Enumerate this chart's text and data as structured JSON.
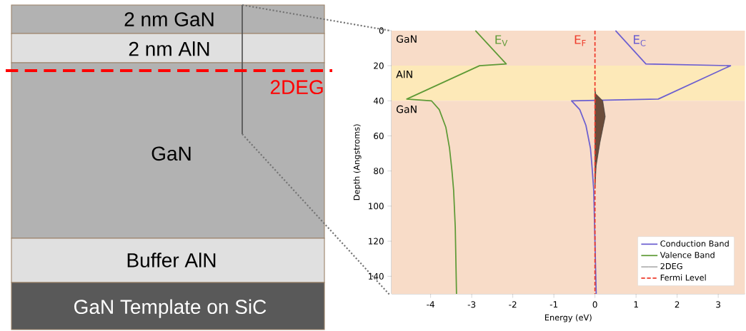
{
  "chart_data": [
    {
      "type": "other",
      "annotations": [
        "2 nm GaN",
        "2 nm AlN",
        "2DEG",
        "GaN",
        "Buffer AlN",
        "GaN Template on SiC"
      ]
    },
    {
      "type": "line",
      "xlabel": "Energy (eV)",
      "ylabel": "Depth (Angstroms)",
      "xlim": [
        -4.95,
        3.65
      ],
      "ylim": [
        150,
        0
      ],
      "xticks": [
        -4,
        -3,
        -2,
        -1,
        0,
        1,
        2,
        3
      ],
      "yticks": [
        0,
        20,
        40,
        60,
        80,
        100,
        120,
        140
      ],
      "legend": "bottom right",
      "bands": [
        {
          "axis": "y",
          "from": 0,
          "to": 20,
          "label": "GaN",
          "color": "#f8dcc8"
        },
        {
          "axis": "y",
          "from": 20,
          "to": 40,
          "label": "AlN",
          "color": "#fde9b8"
        },
        {
          "axis": "y",
          "from": 40,
          "to": 150,
          "label": "GaN",
          "color": "#f8dcc8"
        }
      ],
      "annotations": [
        "E$_{V}$",
        "E$_{F}$",
        "E$_{C}$"
      ],
      "series": [
        {
          "name": "Conduction Band",
          "color": "#6c5fd0",
          "x": [
            0.5,
            1.24,
            3.3,
            1.54,
            -0.57,
            -0.37,
            -0.22,
            -0.11,
            -0.07,
            -0.03,
            0.0,
            0.03
          ],
          "values": [
            0,
            19,
            20,
            39,
            40,
            45,
            54,
            67,
            78,
            91,
            120,
            150
          ]
        },
        {
          "name": "Valence Band",
          "color": "#5e9a36",
          "x": [
            -2.91,
            -2.16,
            -2.81,
            -4.58,
            -3.98,
            -3.79,
            -3.63,
            -3.54,
            -3.48,
            -3.44,
            -3.4,
            -3.37
          ],
          "values": [
            0,
            19,
            20,
            39,
            40,
            45,
            55,
            67,
            80,
            91,
            112,
            150
          ]
        },
        {
          "name": "2DEG",
          "type": "area",
          "color": "#6b4c3a",
          "x": [
            0,
            0.02,
            0.19,
            0.25,
            0.12,
            0.03,
            0
          ],
          "values": [
            34,
            36,
            40,
            49,
            64,
            77,
            90
          ]
        },
        {
          "name": "Fermi Level",
          "color": "#ee3a2a",
          "line_style": "dashed",
          "x": [
            0,
            0
          ],
          "values": [
            0,
            150
          ]
        }
      ]
    }
  ]
}
